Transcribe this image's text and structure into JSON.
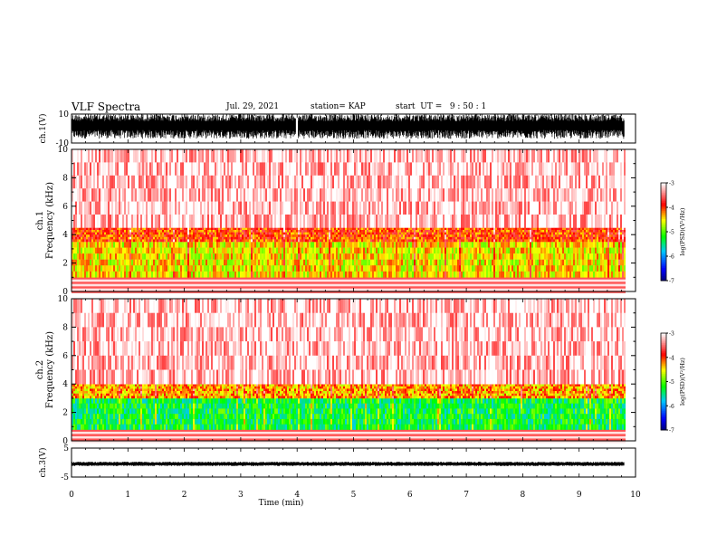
{
  "header": {
    "title": "VLF Spectra",
    "date": "Jul. 29, 2021",
    "station": "station= KAP",
    "start": "start  UT =   9 : 50 : 1"
  },
  "colors": {
    "background": "#ffffff",
    "axis": "#000000",
    "spectrum_high": "#ff0000",
    "spectrum_mid": "#ffff00",
    "spectrum_low": "#00ff00"
  },
  "chart_data": [
    {
      "type": "line",
      "panel": "ch1-waveform",
      "ylabel": "ch.1(V)",
      "ylim": [
        -10,
        10
      ],
      "yticks": [
        -10,
        10
      ],
      "ytick_labels": [
        "-10",
        "10"
      ],
      "xlim": [
        0,
        10
      ],
      "description": "dense noisy waveform filling roughly -7 to 10 V, with gaps near 4.0 min",
      "segments": [
        {
          "x_start": 0.0,
          "x_end": 3.98,
          "y_min": -7,
          "y_max": 10
        },
        {
          "x_start": 4.02,
          "x_end": 9.8,
          "y_min": -7,
          "y_max": 10
        }
      ]
    },
    {
      "type": "heatmap",
      "panel": "ch1-spectrogram",
      "ylabel": "ch.1 Frequency (kHz)",
      "xlim": [
        0,
        10
      ],
      "ylim": [
        0,
        10
      ],
      "yticks": [
        0,
        2,
        4,
        6,
        8,
        10
      ],
      "ytick_labels": [
        "0",
        "2",
        "4",
        "6",
        "8",
        "10"
      ],
      "data_xmax": 9.8,
      "bands": [
        {
          "f_min": 0.0,
          "f_max": 1.0,
          "level": "striped"
        },
        {
          "f_min": 1.0,
          "f_max": 3.5,
          "level": -4.5
        },
        {
          "f_min": 3.5,
          "f_max": 4.5,
          "level": -4.0
        },
        {
          "f_min": 4.5,
          "f_max": 10.0,
          "level": -3.2
        }
      ],
      "colorbar": {
        "label": "log(PSD)(V²/Hz)",
        "range": [
          -7,
          -3
        ],
        "ticks": [
          -7,
          -6,
          -5,
          -4,
          -3
        ],
        "tick_labels": [
          "-7",
          "-6",
          "-5",
          "-4",
          "-3"
        ]
      }
    },
    {
      "type": "heatmap",
      "panel": "ch2-spectrogram",
      "ylabel": "ch.2 Frequency (kHz)",
      "xlim": [
        0,
        10
      ],
      "ylim": [
        0,
        10
      ],
      "yticks": [
        0,
        2,
        4,
        6,
        8,
        10
      ],
      "ytick_labels": [
        "0",
        "2",
        "4",
        "6",
        "8",
        "10"
      ],
      "data_xmax": 9.8,
      "bands": [
        {
          "f_min": 0.0,
          "f_max": 0.8,
          "level": "striped"
        },
        {
          "f_min": 0.8,
          "f_max": 3.0,
          "level": -5.3
        },
        {
          "f_min": 3.0,
          "f_max": 4.0,
          "level": -4.3
        },
        {
          "f_min": 4.0,
          "f_max": 10.0,
          "level": -3.2
        }
      ],
      "colorbar": {
        "label": "log(PSD)(V²/Hz)",
        "range": [
          -7,
          -3
        ],
        "ticks": [
          -7,
          -6,
          -5,
          -4,
          -3
        ],
        "tick_labels": [
          "-7",
          "-6",
          "-5",
          "-4",
          "-3"
        ]
      }
    },
    {
      "type": "line",
      "panel": "ch3-waveform",
      "ylabel": "ch.3(V)",
      "ylim": [
        -5,
        5
      ],
      "yticks": [
        -5,
        5
      ],
      "ytick_labels": [
        "-5",
        "5"
      ],
      "xlim": [
        0,
        10
      ],
      "xlabel": "Time (min)",
      "xticks": [
        0,
        1,
        2,
        3,
        4,
        5,
        6,
        7,
        8,
        9,
        10
      ],
      "xtick_labels": [
        "0",
        "1",
        "2",
        "3",
        "4",
        "5",
        "6",
        "7",
        "8",
        "9",
        "10"
      ],
      "description": "thin nearly flat waveform band near -0.5 V",
      "segments": [
        {
          "x_start": 0.0,
          "x_end": 9.8,
          "y_min": -1.2,
          "y_max": 0.3
        }
      ]
    }
  ]
}
